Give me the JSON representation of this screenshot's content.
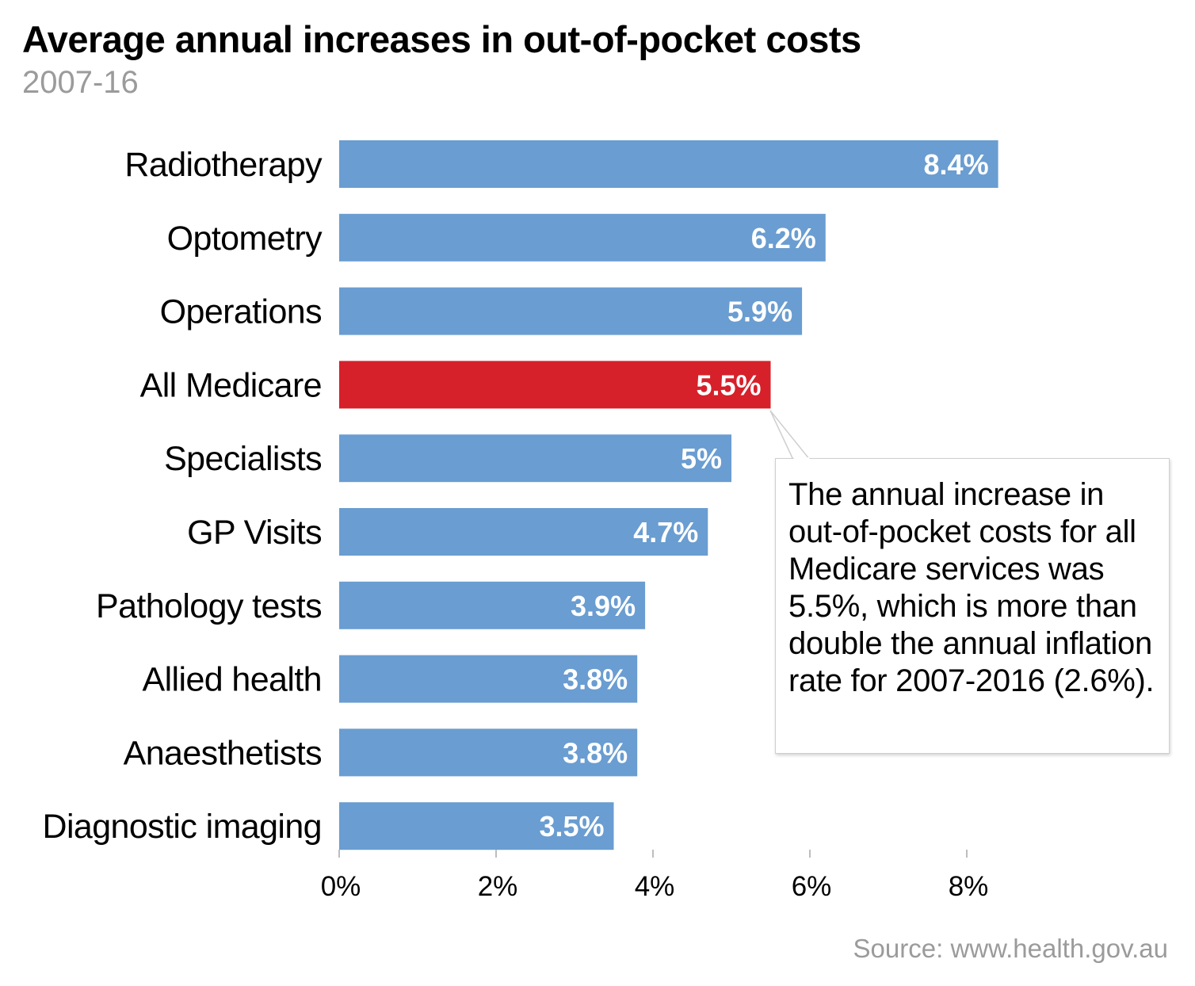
{
  "chart_data": {
    "type": "bar",
    "orientation": "horizontal",
    "title": "Average annual increases in out-of-pocket costs",
    "subtitle": "2007-16",
    "categories": [
      "Radiotherapy",
      "Optometry",
      "Operations",
      "All Medicare",
      "Specialists",
      "GP Visits",
      "Pathology tests",
      "Allied health",
      "Anaesthetists",
      "Diagnostic imaging"
    ],
    "values": [
      8.4,
      6.2,
      5.9,
      5.5,
      5.0,
      4.7,
      3.9,
      3.8,
      3.8,
      3.5
    ],
    "data_labels": [
      "8.4%",
      "6.2%",
      "5.9%",
      "5.5%",
      "5%",
      "4.7%",
      "3.9%",
      "3.8%",
      "3.8%",
      "3.5%"
    ],
    "highlight_category": "All Medicare",
    "colors": {
      "bar": "#6a9dd1",
      "highlight": "#d6202a",
      "label": "#ffffff",
      "axis": "#bdbdbd"
    },
    "xlim": [
      0,
      10
    ],
    "xticks": [
      0,
      2,
      4,
      6,
      8
    ],
    "xtick_labels": [
      "0%",
      "2%",
      "4%",
      "6%",
      "8%"
    ],
    "xlabel": "",
    "ylabel": "",
    "grid": false,
    "legend": "none"
  },
  "annotation": {
    "text": "The annual increase in out-of-pocket costs for all Medicare services was 5.5%, which is more than double the annual inflation rate for 2007-2016 (2.6%).",
    "target_category": "All Medicare"
  },
  "source": "Source: www.health.gov.au"
}
